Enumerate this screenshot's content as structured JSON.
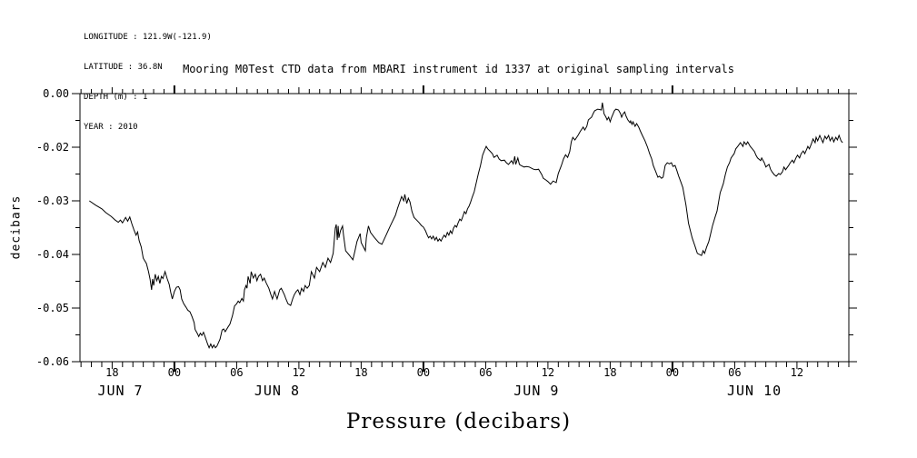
{
  "header": {
    "longitude": "LONGITUDE : 121.9W(-121.9)",
    "latitude": "LATITUDE : 36.8N",
    "depth": "DEPTH (m) : 1",
    "year": "YEAR : 2010"
  },
  "chart_data": {
    "type": "line",
    "title": "Mooring M0Test CTD data from MBARI instrument id 1337 at original sampling intervals",
    "ylabel": "decibars",
    "xlabel": "Pressure (decibars)",
    "series_name": "Pressure",
    "line_color": "#000000",
    "grid": false,
    "x_unit": "hours since 2010-06-07 00:00",
    "x_range": [
      14.9,
      89.0
    ],
    "y_tick_values": [
      0.0,
      -0.02,
      -0.03,
      -0.04,
      -0.05,
      -0.06
    ],
    "y_tick_labels": [
      "0.00",
      "-0.02",
      "-0.03",
      "-0.04",
      "-0.05",
      "-0.06"
    ],
    "x_major_ticks": [
      {
        "t": 18,
        "label": "18"
      },
      {
        "t": 24,
        "label": "00"
      },
      {
        "t": 30,
        "label": "06"
      },
      {
        "t": 36,
        "label": "12"
      },
      {
        "t": 42,
        "label": "18"
      },
      {
        "t": 48,
        "label": "00"
      },
      {
        "t": 54,
        "label": "06"
      },
      {
        "t": 60,
        "label": "12"
      },
      {
        "t": 66,
        "label": "18"
      },
      {
        "t": 72,
        "label": "00"
      },
      {
        "t": 78,
        "label": "06"
      },
      {
        "t": 84,
        "label": "12"
      }
    ],
    "day_labels": [
      {
        "t": 18.8,
        "label": "JUN  7"
      },
      {
        "t": 33.9,
        "label": "JUN  8"
      },
      {
        "t": 58.9,
        "label": "JUN  9"
      },
      {
        "t": 79.9,
        "label": "JUN 10"
      }
    ],
    "minor_tick_interval_hours": 1,
    "bold_tick_at_midnight": true,
    "points": [
      [
        15.8,
        -0.03
      ],
      [
        16.4,
        -0.0308
      ],
      [
        17.0,
        -0.0315
      ],
      [
        17.4,
        -0.0322
      ],
      [
        17.9,
        -0.0329
      ],
      [
        18.3,
        -0.0336
      ],
      [
        18.6,
        -0.034
      ],
      [
        18.8,
        -0.0336
      ],
      [
        19.0,
        -0.0341
      ],
      [
        19.3,
        -0.0331
      ],
      [
        19.5,
        -0.0338
      ],
      [
        19.7,
        -0.033
      ],
      [
        19.9,
        -0.0343
      ],
      [
        20.1,
        -0.0354
      ],
      [
        20.3,
        -0.0364
      ],
      [
        20.45,
        -0.0358
      ],
      [
        20.6,
        -0.0374
      ],
      [
        20.8,
        -0.0386
      ],
      [
        21.0,
        -0.0407
      ],
      [
        21.3,
        -0.0417
      ],
      [
        21.5,
        -0.0432
      ],
      [
        21.65,
        -0.0446
      ],
      [
        21.8,
        -0.0466
      ],
      [
        21.9,
        -0.0446
      ],
      [
        22.0,
        -0.0458
      ],
      [
        22.15,
        -0.0437
      ],
      [
        22.3,
        -0.0449
      ],
      [
        22.45,
        -0.0441
      ],
      [
        22.6,
        -0.0454
      ],
      [
        22.75,
        -0.0441
      ],
      [
        22.9,
        -0.0445
      ],
      [
        23.1,
        -0.0432
      ],
      [
        23.3,
        -0.0445
      ],
      [
        23.5,
        -0.0456
      ],
      [
        23.65,
        -0.0471
      ],
      [
        23.8,
        -0.0483
      ],
      [
        24.0,
        -0.0469
      ],
      [
        24.2,
        -0.0461
      ],
      [
        24.4,
        -0.046
      ],
      [
        24.55,
        -0.0466
      ],
      [
        24.7,
        -0.0483
      ],
      [
        24.9,
        -0.0492
      ],
      [
        25.1,
        -0.0498
      ],
      [
        25.3,
        -0.0504
      ],
      [
        25.5,
        -0.0507
      ],
      [
        25.7,
        -0.0516
      ],
      [
        25.9,
        -0.0527
      ],
      [
        26.0,
        -0.054
      ],
      [
        26.2,
        -0.0547
      ],
      [
        26.35,
        -0.0553
      ],
      [
        26.5,
        -0.0547
      ],
      [
        26.65,
        -0.0551
      ],
      [
        26.8,
        -0.0545
      ],
      [
        26.95,
        -0.0553
      ],
      [
        27.2,
        -0.0567
      ],
      [
        27.35,
        -0.0574
      ],
      [
        27.5,
        -0.0567
      ],
      [
        27.65,
        -0.0574
      ],
      [
        27.8,
        -0.0569
      ],
      [
        27.95,
        -0.0574
      ],
      [
        28.1,
        -0.0571
      ],
      [
        28.4,
        -0.0558
      ],
      [
        28.6,
        -0.0541
      ],
      [
        28.75,
        -0.0539
      ],
      [
        28.9,
        -0.0544
      ],
      [
        29.15,
        -0.0536
      ],
      [
        29.35,
        -0.053
      ],
      [
        29.6,
        -0.0514
      ],
      [
        29.8,
        -0.0496
      ],
      [
        30.0,
        -0.0492
      ],
      [
        30.15,
        -0.0487
      ],
      [
        30.3,
        -0.049
      ],
      [
        30.5,
        -0.0482
      ],
      [
        30.65,
        -0.0487
      ],
      [
        30.75,
        -0.0466
      ],
      [
        30.9,
        -0.0458
      ],
      [
        31.0,
        -0.0463
      ],
      [
        31.1,
        -0.0441
      ],
      [
        31.3,
        -0.0454
      ],
      [
        31.4,
        -0.0432
      ],
      [
        31.6,
        -0.0444
      ],
      [
        31.8,
        -0.0437
      ],
      [
        31.95,
        -0.0449
      ],
      [
        32.1,
        -0.0441
      ],
      [
        32.3,
        -0.0437
      ],
      [
        32.5,
        -0.0449
      ],
      [
        32.65,
        -0.0444
      ],
      [
        32.85,
        -0.0453
      ],
      [
        33.1,
        -0.0463
      ],
      [
        33.3,
        -0.0475
      ],
      [
        33.45,
        -0.0483
      ],
      [
        33.65,
        -0.0469
      ],
      [
        33.9,
        -0.0483
      ],
      [
        34.15,
        -0.0466
      ],
      [
        34.3,
        -0.0463
      ],
      [
        34.6,
        -0.0475
      ],
      [
        34.75,
        -0.0483
      ],
      [
        34.95,
        -0.0492
      ],
      [
        35.2,
        -0.0495
      ],
      [
        35.4,
        -0.0483
      ],
      [
        35.55,
        -0.0475
      ],
      [
        35.75,
        -0.0469
      ],
      [
        35.9,
        -0.0466
      ],
      [
        36.1,
        -0.0475
      ],
      [
        36.25,
        -0.0463
      ],
      [
        36.45,
        -0.0469
      ],
      [
        36.6,
        -0.0458
      ],
      [
        36.8,
        -0.0463
      ],
      [
        37.0,
        -0.0458
      ],
      [
        37.2,
        -0.0432
      ],
      [
        37.5,
        -0.0444
      ],
      [
        37.7,
        -0.0424
      ],
      [
        38.0,
        -0.0432
      ],
      [
        38.3,
        -0.0415
      ],
      [
        38.55,
        -0.0424
      ],
      [
        38.8,
        -0.0407
      ],
      [
        39.05,
        -0.0415
      ],
      [
        39.3,
        -0.0398
      ],
      [
        39.5,
        -0.0351
      ],
      [
        39.6,
        -0.0344
      ],
      [
        39.7,
        -0.0373
      ],
      [
        39.78,
        -0.0347
      ],
      [
        39.85,
        -0.0369
      ],
      [
        40.0,
        -0.0356
      ],
      [
        40.2,
        -0.0347
      ],
      [
        40.3,
        -0.0364
      ],
      [
        40.5,
        -0.0393
      ],
      [
        40.8,
        -0.04
      ],
      [
        41.2,
        -0.041
      ],
      [
        41.4,
        -0.0393
      ],
      [
        41.6,
        -0.0376
      ],
      [
        41.9,
        -0.0361
      ],
      [
        42.0,
        -0.0378
      ],
      [
        42.4,
        -0.0393
      ],
      [
        42.5,
        -0.0369
      ],
      [
        42.7,
        -0.0347
      ],
      [
        42.9,
        -0.0359
      ],
      [
        43.3,
        -0.0369
      ],
      [
        43.7,
        -0.0378
      ],
      [
        44.0,
        -0.0381
      ],
      [
        44.4,
        -0.0364
      ],
      [
        44.8,
        -0.0347
      ],
      [
        45.3,
        -0.0327
      ],
      [
        45.5,
        -0.0314
      ],
      [
        45.9,
        -0.0292
      ],
      [
        46.1,
        -0.03
      ],
      [
        46.2,
        -0.0288
      ],
      [
        46.4,
        -0.0305
      ],
      [
        46.55,
        -0.0295
      ],
      [
        46.7,
        -0.0302
      ],
      [
        46.9,
        -0.032
      ],
      [
        47.1,
        -0.0331
      ],
      [
        47.35,
        -0.0336
      ],
      [
        47.6,
        -0.0341
      ],
      [
        47.8,
        -0.0346
      ],
      [
        48.0,
        -0.0349
      ],
      [
        48.2,
        -0.0356
      ],
      [
        48.35,
        -0.0363
      ],
      [
        48.5,
        -0.0369
      ],
      [
        48.65,
        -0.0366
      ],
      [
        48.8,
        -0.0371
      ],
      [
        48.95,
        -0.0366
      ],
      [
        49.1,
        -0.0373
      ],
      [
        49.25,
        -0.0368
      ],
      [
        49.4,
        -0.0375
      ],
      [
        49.55,
        -0.0371
      ],
      [
        49.7,
        -0.0375
      ],
      [
        49.85,
        -0.0369
      ],
      [
        50.0,
        -0.0364
      ],
      [
        50.15,
        -0.0368
      ],
      [
        50.3,
        -0.0359
      ],
      [
        50.45,
        -0.0364
      ],
      [
        50.6,
        -0.0356
      ],
      [
        50.75,
        -0.0361
      ],
      [
        50.9,
        -0.0351
      ],
      [
        51.05,
        -0.0346
      ],
      [
        51.2,
        -0.0349
      ],
      [
        51.35,
        -0.0341
      ],
      [
        51.5,
        -0.0334
      ],
      [
        51.65,
        -0.0337
      ],
      [
        51.8,
        -0.0329
      ],
      [
        51.95,
        -0.032
      ],
      [
        52.1,
        -0.0324
      ],
      [
        52.25,
        -0.0315
      ],
      [
        52.4,
        -0.031
      ],
      [
        52.55,
        -0.0302
      ],
      [
        52.7,
        -0.0293
      ],
      [
        52.9,
        -0.0283
      ],
      [
        53.1,
        -0.0266
      ],
      [
        53.3,
        -0.0249
      ],
      [
        53.5,
        -0.0234
      ],
      [
        53.7,
        -0.0215
      ],
      [
        53.9,
        -0.0205
      ],
      [
        54.05,
        -0.0197
      ],
      [
        54.2,
        -0.0203
      ],
      [
        54.4,
        -0.0207
      ],
      [
        54.65,
        -0.0212
      ],
      [
        54.8,
        -0.0219
      ],
      [
        55.1,
        -0.0215
      ],
      [
        55.3,
        -0.0222
      ],
      [
        55.5,
        -0.0225
      ],
      [
        55.8,
        -0.0224
      ],
      [
        56.0,
        -0.0229
      ],
      [
        56.2,
        -0.0232
      ],
      [
        56.5,
        -0.0225
      ],
      [
        56.65,
        -0.0231
      ],
      [
        56.8,
        -0.0217
      ],
      [
        56.9,
        -0.0232
      ],
      [
        57.1,
        -0.022
      ],
      [
        57.25,
        -0.0232
      ],
      [
        57.4,
        -0.0234
      ],
      [
        57.7,
        -0.0237
      ],
      [
        57.95,
        -0.0236
      ],
      [
        58.2,
        -0.0237
      ],
      [
        58.6,
        -0.0241
      ],
      [
        58.85,
        -0.0242
      ],
      [
        59.1,
        -0.0241
      ],
      [
        59.4,
        -0.0251
      ],
      [
        59.55,
        -0.0258
      ],
      [
        59.8,
        -0.0261
      ],
      [
        60.0,
        -0.0264
      ],
      [
        60.25,
        -0.0269
      ],
      [
        60.5,
        -0.0263
      ],
      [
        60.8,
        -0.0266
      ],
      [
        61.0,
        -0.0249
      ],
      [
        61.3,
        -0.0234
      ],
      [
        61.5,
        -0.0222
      ],
      [
        61.7,
        -0.0214
      ],
      [
        61.9,
        -0.0219
      ],
      [
        62.1,
        -0.0208
      ],
      [
        62.25,
        -0.018
      ],
      [
        62.4,
        -0.0163
      ],
      [
        62.6,
        -0.0173
      ],
      [
        62.9,
        -0.0156
      ],
      [
        63.1,
        -0.0142
      ],
      [
        63.4,
        -0.0125
      ],
      [
        63.55,
        -0.0136
      ],
      [
        63.75,
        -0.0122
      ],
      [
        63.9,
        -0.0098
      ],
      [
        64.2,
        -0.0088
      ],
      [
        64.35,
        -0.0075
      ],
      [
        64.5,
        -0.0064
      ],
      [
        64.8,
        -0.0058
      ],
      [
        65.15,
        -0.0061
      ],
      [
        65.25,
        -0.0034
      ],
      [
        65.4,
        -0.0075
      ],
      [
        65.6,
        -0.0088
      ],
      [
        65.7,
        -0.0098
      ],
      [
        65.85,
        -0.0088
      ],
      [
        66.0,
        -0.0105
      ],
      [
        66.1,
        -0.0092
      ],
      [
        66.4,
        -0.0064
      ],
      [
        66.55,
        -0.0058
      ],
      [
        66.8,
        -0.0061
      ],
      [
        67.0,
        -0.0075
      ],
      [
        67.1,
        -0.0088
      ],
      [
        67.25,
        -0.0075
      ],
      [
        67.4,
        -0.0068
      ],
      [
        67.5,
        -0.0081
      ],
      [
        67.7,
        -0.0098
      ],
      [
        67.9,
        -0.0108
      ],
      [
        67.97,
        -0.0102
      ],
      [
        68.1,
        -0.0115
      ],
      [
        68.2,
        -0.0105
      ],
      [
        68.4,
        -0.0122
      ],
      [
        68.55,
        -0.0112
      ],
      [
        68.75,
        -0.0125
      ],
      [
        68.9,
        -0.0139
      ],
      [
        69.1,
        -0.0156
      ],
      [
        69.35,
        -0.0176
      ],
      [
        69.6,
        -0.02
      ],
      [
        69.8,
        -0.0212
      ],
      [
        70.0,
        -0.0222
      ],
      [
        70.15,
        -0.0234
      ],
      [
        70.4,
        -0.0246
      ],
      [
        70.6,
        -0.0256
      ],
      [
        70.75,
        -0.0254
      ],
      [
        70.95,
        -0.0258
      ],
      [
        71.1,
        -0.0256
      ],
      [
        71.3,
        -0.0234
      ],
      [
        71.5,
        -0.0229
      ],
      [
        71.7,
        -0.0231
      ],
      [
        71.9,
        -0.0229
      ],
      [
        72.05,
        -0.0236
      ],
      [
        72.25,
        -0.0234
      ],
      [
        72.4,
        -0.0242
      ],
      [
        72.6,
        -0.0254
      ],
      [
        72.8,
        -0.0264
      ],
      [
        73.0,
        -0.0275
      ],
      [
        73.3,
        -0.0308
      ],
      [
        73.55,
        -0.0342
      ],
      [
        73.9,
        -0.0369
      ],
      [
        74.2,
        -0.0386
      ],
      [
        74.4,
        -0.0398
      ],
      [
        74.8,
        -0.0402
      ],
      [
        74.95,
        -0.0393
      ],
      [
        75.1,
        -0.0398
      ],
      [
        75.3,
        -0.0386
      ],
      [
        75.5,
        -0.0376
      ],
      [
        75.65,
        -0.0364
      ],
      [
        75.85,
        -0.0347
      ],
      [
        76.1,
        -0.0331
      ],
      [
        76.3,
        -0.0319
      ],
      [
        76.45,
        -0.0302
      ],
      [
        76.6,
        -0.0285
      ],
      [
        76.9,
        -0.0268
      ],
      [
        77.1,
        -0.0251
      ],
      [
        77.3,
        -0.0237
      ],
      [
        77.5,
        -0.0229
      ],
      [
        77.65,
        -0.022
      ],
      [
        77.95,
        -0.0212
      ],
      [
        78.1,
        -0.0203
      ],
      [
        78.3,
        -0.0197
      ],
      [
        78.55,
        -0.0183
      ],
      [
        78.8,
        -0.0197
      ],
      [
        78.9,
        -0.018
      ],
      [
        79.1,
        -0.019
      ],
      [
        79.25,
        -0.018
      ],
      [
        79.5,
        -0.0197
      ],
      [
        79.7,
        -0.0203
      ],
      [
        79.9,
        -0.0208
      ],
      [
        80.05,
        -0.0215
      ],
      [
        80.2,
        -0.022
      ],
      [
        80.5,
        -0.0225
      ],
      [
        80.6,
        -0.022
      ],
      [
        80.85,
        -0.0229
      ],
      [
        81.0,
        -0.0237
      ],
      [
        81.3,
        -0.0232
      ],
      [
        81.45,
        -0.0241
      ],
      [
        81.6,
        -0.0246
      ],
      [
        81.8,
        -0.0251
      ],
      [
        82.0,
        -0.0254
      ],
      [
        82.25,
        -0.0249
      ],
      [
        82.4,
        -0.0251
      ],
      [
        82.6,
        -0.0246
      ],
      [
        82.75,
        -0.0237
      ],
      [
        82.9,
        -0.0242
      ],
      [
        83.2,
        -0.0234
      ],
      [
        83.35,
        -0.0229
      ],
      [
        83.55,
        -0.0224
      ],
      [
        83.7,
        -0.0229
      ],
      [
        83.9,
        -0.022
      ],
      [
        84.05,
        -0.0215
      ],
      [
        84.25,
        -0.022
      ],
      [
        84.4,
        -0.0212
      ],
      [
        84.6,
        -0.0207
      ],
      [
        84.75,
        -0.0212
      ],
      [
        84.95,
        -0.0203
      ],
      [
        85.05,
        -0.0197
      ],
      [
        85.2,
        -0.0203
      ],
      [
        85.4,
        -0.0186
      ],
      [
        85.55,
        -0.0169
      ],
      [
        85.75,
        -0.0183
      ],
      [
        85.85,
        -0.0163
      ],
      [
        86.0,
        -0.0176
      ],
      [
        86.2,
        -0.0156
      ],
      [
        86.35,
        -0.0169
      ],
      [
        86.5,
        -0.0183
      ],
      [
        86.7,
        -0.0159
      ],
      [
        86.85,
        -0.0169
      ],
      [
        87.05,
        -0.0156
      ],
      [
        87.2,
        -0.0176
      ],
      [
        87.4,
        -0.0163
      ],
      [
        87.55,
        -0.018
      ],
      [
        87.75,
        -0.0163
      ],
      [
        87.9,
        -0.0173
      ],
      [
        88.05,
        -0.0156
      ],
      [
        88.25,
        -0.0176
      ],
      [
        88.4,
        -0.0183
      ]
    ]
  }
}
